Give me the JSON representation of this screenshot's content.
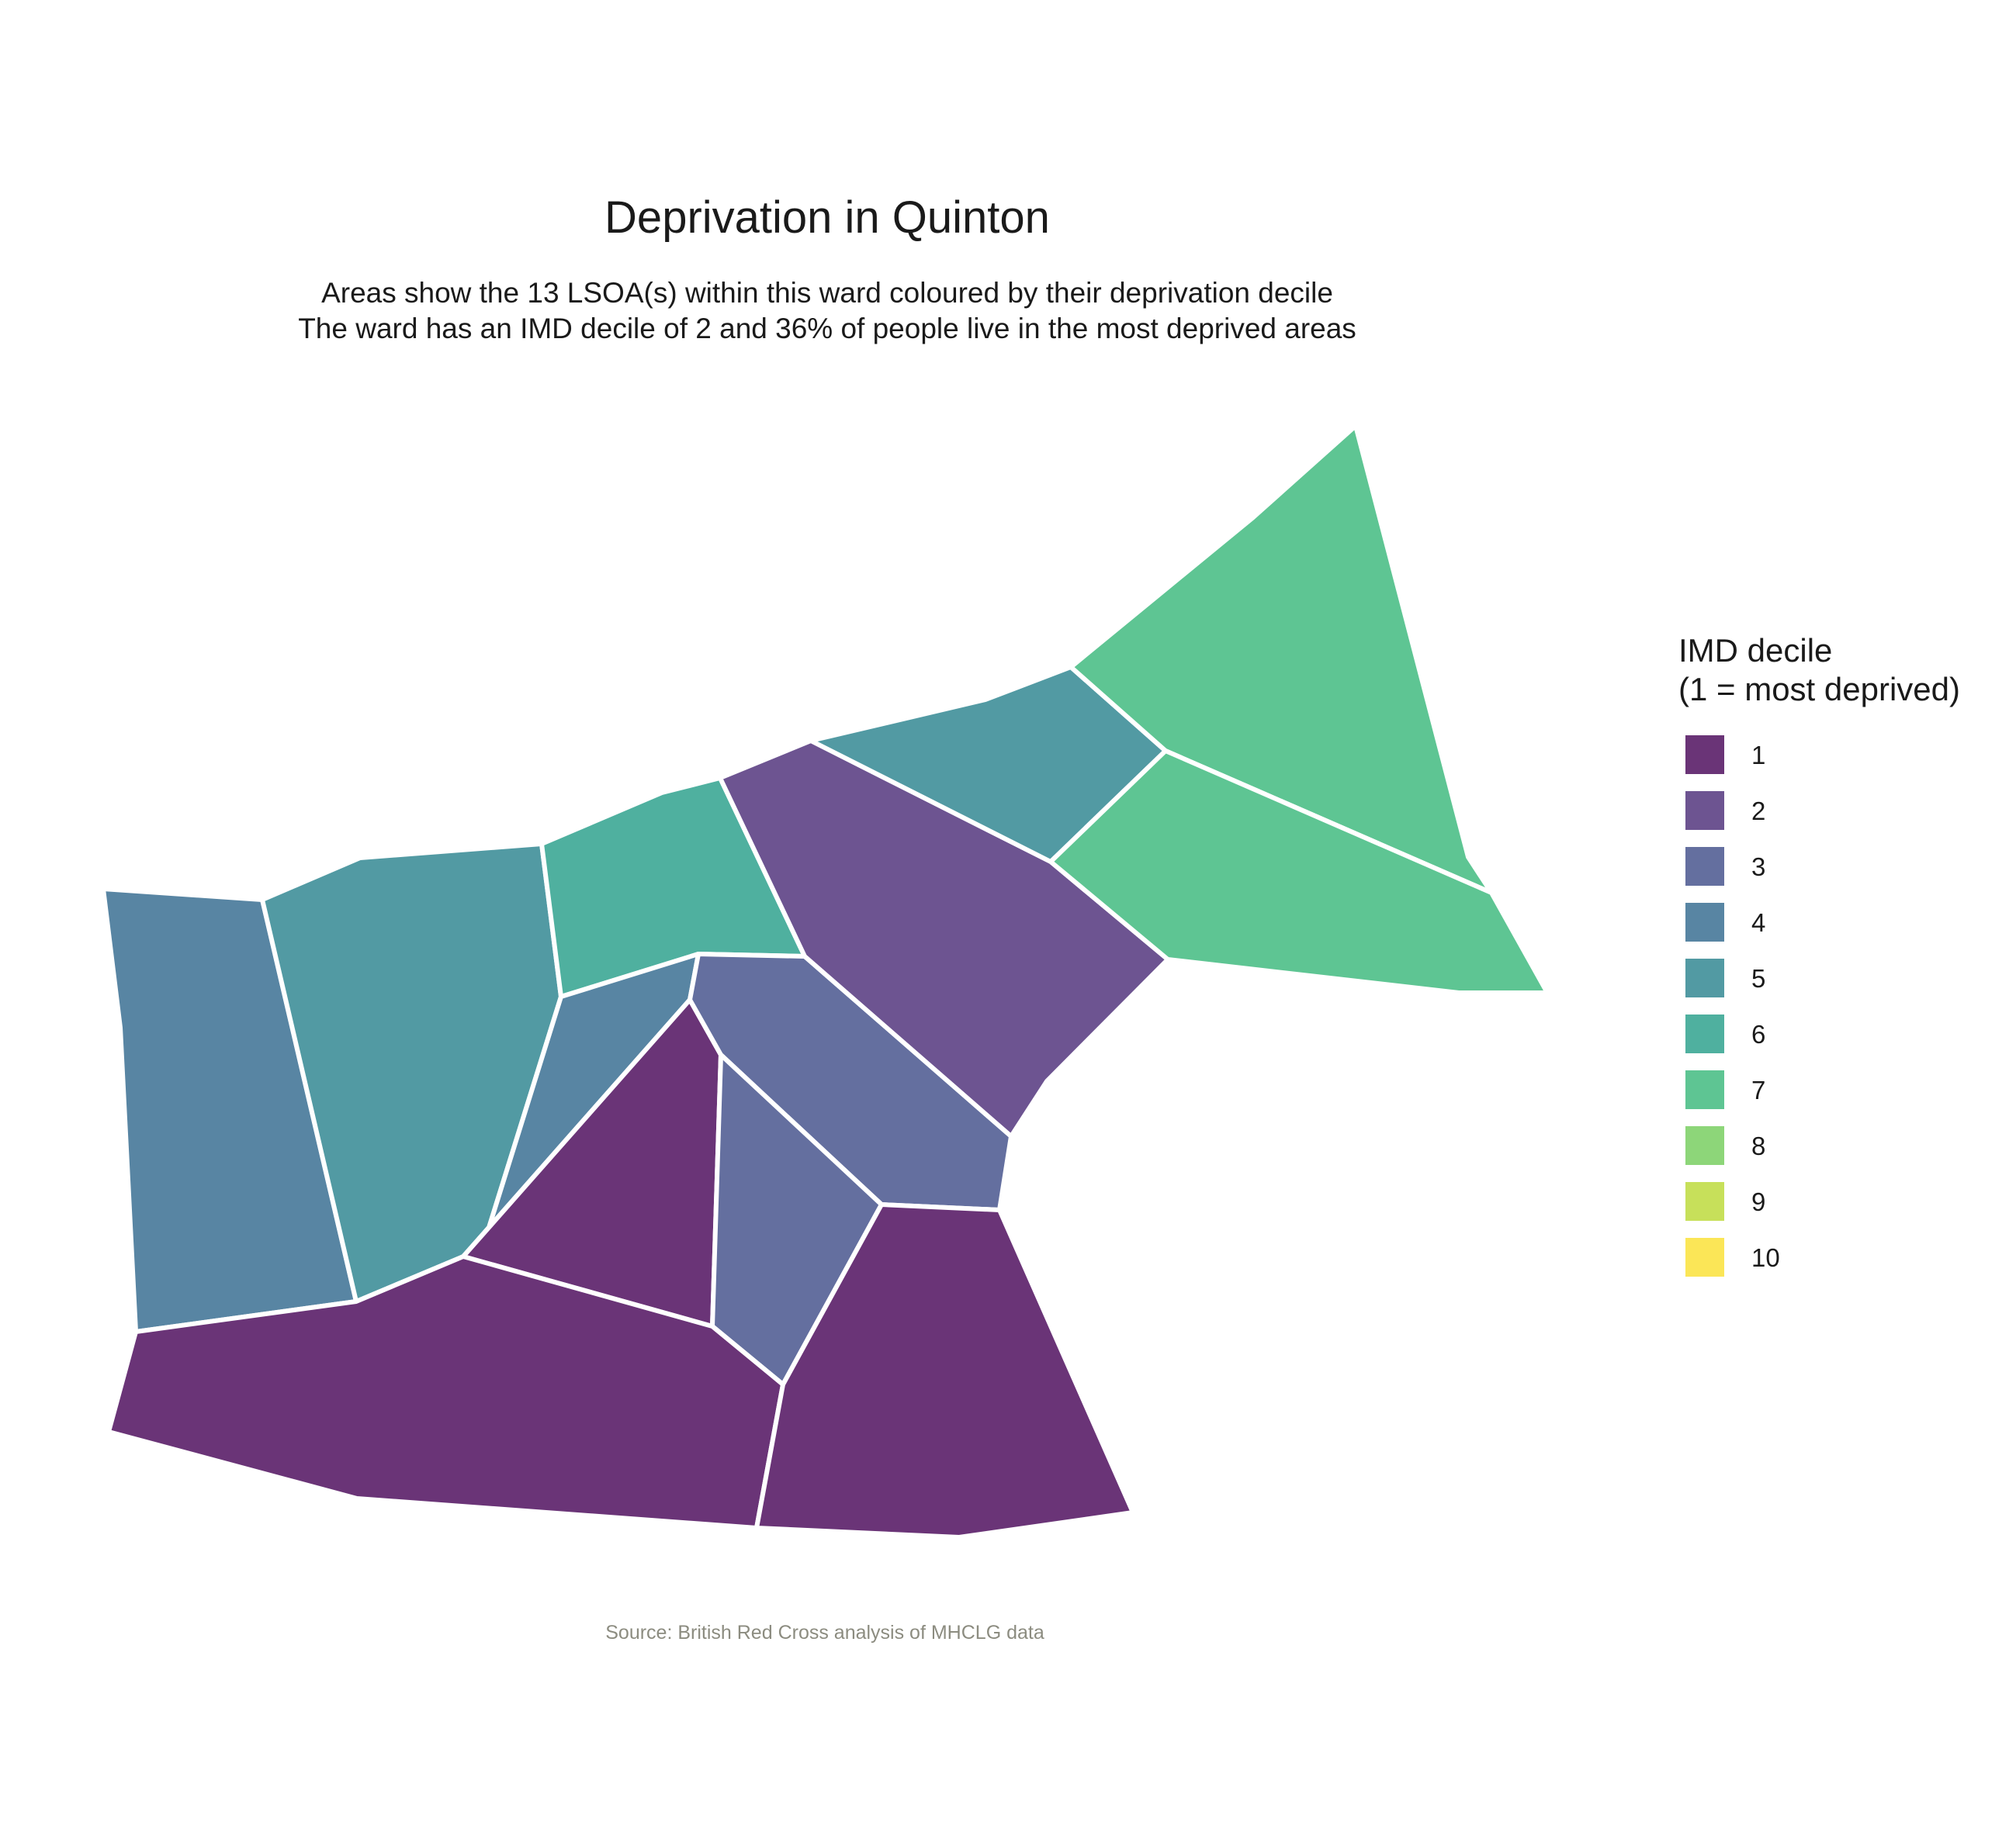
{
  "title": "Deprivation in Quinton",
  "subtitle_line1": "Areas show the 13 LSOA(s) within this ward coloured by their deprivation decile",
  "subtitle_line2": "The ward has an IMD decile of 2 and 36% of people live in the most deprived areas",
  "caption": "Source: British Red Cross analysis of MHCLG data",
  "legend": {
    "title_line1": "IMD decile",
    "title_line2": "(1 = most deprived)",
    "items": [
      {
        "label": "1",
        "color": "#6a3477"
      },
      {
        "label": "2",
        "color": "#6d5491"
      },
      {
        "label": "3",
        "color": "#646f9f"
      },
      {
        "label": "4",
        "color": "#5885a3"
      },
      {
        "label": "5",
        "color": "#529aa3"
      },
      {
        "label": "6",
        "color": "#4fb09f"
      },
      {
        "label": "7",
        "color": "#5ec593"
      },
      {
        "label": "8",
        "color": "#8dd679"
      },
      {
        "label": "9",
        "color": "#c7e05a"
      },
      {
        "label": "10",
        "color": "#fbe657"
      }
    ]
  },
  "chart_data": {
    "type": "choropleth",
    "ward": "Quinton",
    "lsoa_count": 13,
    "ward_imd_decile": 2,
    "percent_in_most_deprived": 36,
    "lsoa_deciles": [
      4,
      5,
      6,
      4,
      1,
      3,
      3,
      1,
      1,
      2,
      5,
      7,
      7
    ]
  }
}
